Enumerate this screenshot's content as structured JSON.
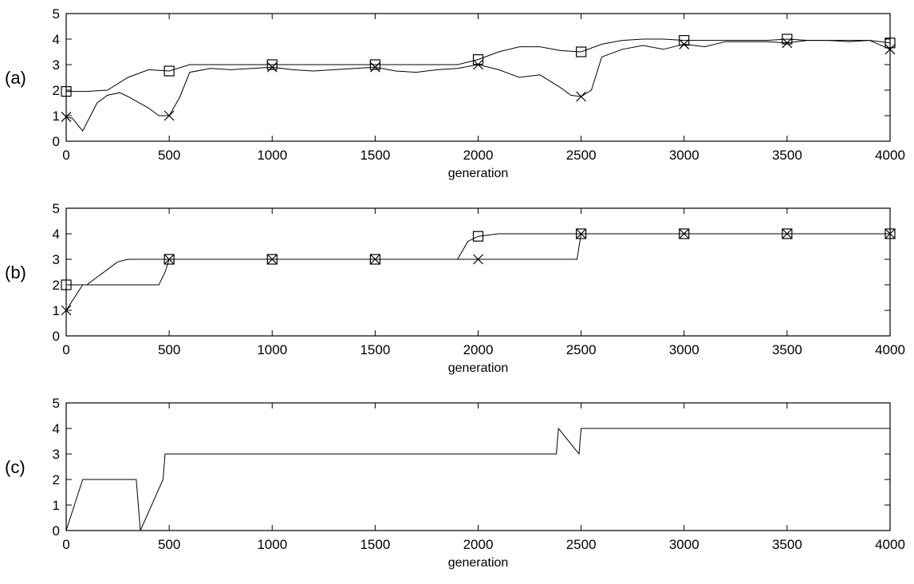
{
  "chart_data": [
    {
      "panel_label": "(a)",
      "type": "line",
      "xlabel": "generation",
      "ylabel": "",
      "xlim": [
        0,
        4000
      ],
      "ylim": [
        0,
        5
      ],
      "xticks": [
        0,
        500,
        1000,
        1500,
        2000,
        2500,
        3000,
        3500,
        4000
      ],
      "yticks": [
        0,
        1,
        2,
        3,
        4,
        5
      ],
      "series": [
        {
          "marker": "square",
          "x": [
            0,
            100,
            200,
            300,
            400,
            500,
            600,
            700,
            800,
            900,
            1000,
            1100,
            1200,
            1300,
            1400,
            1500,
            1600,
            1700,
            1800,
            1900,
            2000,
            2100,
            2200,
            2300,
            2400,
            2500,
            2600,
            2700,
            2800,
            2900,
            3000,
            3100,
            3200,
            3300,
            3400,
            3500,
            3600,
            3700,
            3800,
            3900,
            4000
          ],
          "y": [
            1.95,
            1.95,
            2.0,
            2.5,
            2.8,
            2.75,
            3.0,
            3.0,
            3.0,
            3.0,
            3.0,
            3.0,
            3.0,
            3.0,
            3.0,
            3.0,
            3.0,
            3.0,
            3.0,
            3.0,
            3.2,
            3.5,
            3.7,
            3.7,
            3.55,
            3.5,
            3.8,
            3.95,
            4.0,
            4.0,
            3.95,
            3.95,
            3.95,
            3.95,
            3.95,
            4.0,
            3.95,
            3.95,
            3.95,
            3.95,
            3.85
          ]
        },
        {
          "marker": "x",
          "x": [
            0,
            30,
            80,
            150,
            200,
            260,
            300,
            400,
            450,
            500,
            550,
            600,
            700,
            800,
            900,
            1000,
            1100,
            1200,
            1300,
            1400,
            1500,
            1600,
            1700,
            1800,
            1900,
            2000,
            2100,
            2200,
            2300,
            2400,
            2450,
            2500,
            2550,
            2600,
            2700,
            2800,
            2900,
            3000,
            3100,
            3200,
            3300,
            3400,
            3500,
            3600,
            3700,
            3800,
            3900,
            4000
          ],
          "y": [
            0.95,
            0.9,
            0.4,
            1.5,
            1.8,
            1.9,
            1.75,
            1.3,
            1.0,
            1.0,
            1.7,
            2.7,
            2.85,
            2.8,
            2.85,
            2.9,
            2.8,
            2.75,
            2.8,
            2.85,
            2.9,
            2.75,
            2.7,
            2.8,
            2.85,
            3.0,
            2.8,
            2.5,
            2.6,
            2.1,
            1.8,
            1.75,
            2.0,
            3.3,
            3.6,
            3.75,
            3.6,
            3.8,
            3.7,
            3.9,
            3.9,
            3.9,
            3.85,
            3.95,
            3.95,
            3.9,
            3.95,
            3.6
          ]
        }
      ]
    },
    {
      "panel_label": "(b)",
      "type": "line",
      "xlabel": "generation",
      "ylabel": "",
      "xlim": [
        0,
        4000
      ],
      "ylim": [
        0,
        5
      ],
      "xticks": [
        0,
        500,
        1000,
        1500,
        2000,
        2500,
        3000,
        3500,
        4000
      ],
      "yticks": [
        0,
        1,
        2,
        3,
        4,
        5
      ],
      "series": [
        {
          "marker": "square",
          "x": [
            0,
            100,
            150,
            200,
            250,
            300,
            400,
            480,
            500,
            1000,
            1500,
            1900,
            1950,
            2000,
            2100,
            2400,
            2500,
            3000,
            3500,
            4000
          ],
          "y": [
            2.0,
            2.0,
            2.3,
            2.6,
            2.9,
            3.0,
            3.0,
            3.0,
            3.0,
            3.0,
            3.0,
            3.0,
            3.7,
            3.9,
            4.0,
            4.0,
            4.0,
            4.0,
            4.0,
            4.0
          ]
        },
        {
          "marker": "x",
          "x": [
            0,
            40,
            80,
            130,
            450,
            480,
            500,
            1000,
            1500,
            2000,
            2480,
            2500,
            3000,
            3500,
            4000
          ],
          "y": [
            1.0,
            1.5,
            2.0,
            2.0,
            2.0,
            2.5,
            3.0,
            3.0,
            3.0,
            3.0,
            3.0,
            4.0,
            4.0,
            4.0,
            4.0
          ]
        }
      ]
    },
    {
      "panel_label": "(c)",
      "type": "line",
      "xlabel": "generation",
      "ylabel": "",
      "xlim": [
        0,
        4000
      ],
      "ylim": [
        0,
        5
      ],
      "xticks": [
        0,
        500,
        1000,
        1500,
        2000,
        2500,
        3000,
        3500,
        4000
      ],
      "yticks": [
        0,
        1,
        2,
        3,
        4,
        5
      ],
      "series": [
        {
          "x": [
            0,
            40,
            80,
            340,
            360,
            470,
            480,
            1250,
            1260,
            2380,
            2390,
            2490,
            2500,
            4000
          ],
          "y": [
            0,
            1,
            2,
            2,
            0,
            2,
            3,
            3,
            3,
            3,
            4,
            3,
            4,
            4
          ]
        }
      ]
    }
  ]
}
